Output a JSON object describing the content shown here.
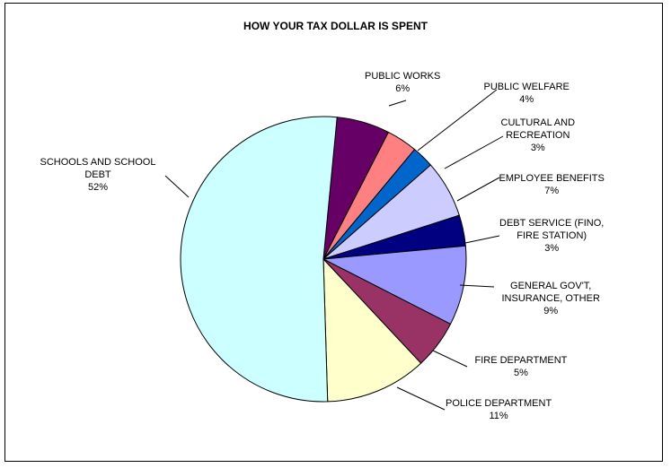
{
  "chart_data": {
    "type": "pie",
    "title": "HOW YOUR TAX DOLLAR IS SPENT",
    "slices": [
      {
        "id": "public-works",
        "label_lines": [
          "PUBLIC WORKS"
        ],
        "pct": "6%",
        "value": 6,
        "color": "#660066"
      },
      {
        "id": "public-welfare",
        "label_lines": [
          "PUBLIC WELFARE"
        ],
        "pct": "4%",
        "value": 3.5,
        "color": "#FF8080"
      },
      {
        "id": "cultural-recreation",
        "label_lines": [
          "CULTURAL AND",
          "RECREATION"
        ],
        "pct": "3%",
        "value": 2.5,
        "color": "#0066CC"
      },
      {
        "id": "employee-benefits",
        "label_lines": [
          "EMPLOYEE BENEFITS"
        ],
        "pct": "7%",
        "value": 6.5,
        "color": "#CCCCFF"
      },
      {
        "id": "debt-service",
        "label_lines": [
          "DEBT SERVICE (FINO,",
          "FIRE STATION)"
        ],
        "pct": "3%",
        "value": 3.5,
        "color": "#000080"
      },
      {
        "id": "general-govt",
        "label_lines": [
          "GENERAL GOV'T,",
          "INSURANCE, OTHER"
        ],
        "pct": "9%",
        "value": 9,
        "color": "#9999FF"
      },
      {
        "id": "fire-department",
        "label_lines": [
          "FIRE DEPARTMENT"
        ],
        "pct": "5%",
        "value": 5.5,
        "color": "#993366"
      },
      {
        "id": "police-department",
        "label_lines": [
          "POLICE DEPARTMENT"
        ],
        "pct": "11%",
        "value": 11.5,
        "color": "#FFFFCC"
      },
      {
        "id": "schools",
        "label_lines": [
          "SCHOOLS AND SCHOOL",
          "DEBT"
        ],
        "pct": "52%",
        "value": 52,
        "color": "#CCFFFF"
      }
    ],
    "legend": "none"
  }
}
